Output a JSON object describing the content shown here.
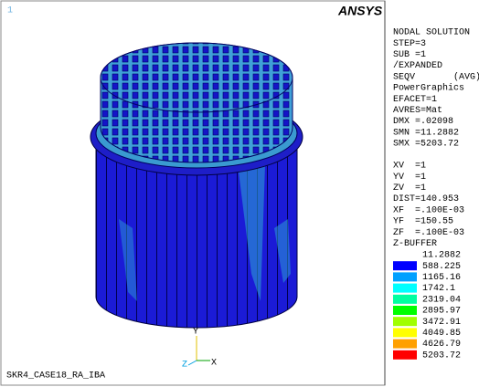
{
  "viewport": {
    "window_number": "1",
    "logo": "ANSYS",
    "jobname": "SKR4_CASE18_RA_IBA",
    "triad": {
      "x": "X",
      "y": "Y",
      "z": "Z"
    }
  },
  "info": {
    "solution": [
      "NODAL SOLUTION",
      "STEP=3",
      "SUB =1",
      "/EXPANDED",
      "SEQV       (AVG)",
      "PowerGraphics",
      "EFACET=1",
      "AVRES=Mat",
      "DMX =.02098",
      "SMN =11.2882",
      "SMX =5203.72"
    ],
    "view": [
      "XV  =1",
      "YV  =1",
      "ZV  =1",
      "DIST=140.953",
      "XF  =.100E-03",
      "YF  =150.55",
      "ZF  =.100E-03",
      "Z-BUFFER"
    ]
  },
  "legend": {
    "values": [
      "11.2882",
      "588.225",
      "1165.16",
      "1742.1",
      "2319.04",
      "2895.97",
      "3472.91",
      "4049.85",
      "4626.79",
      "5203.72"
    ],
    "colors": [
      "#0000ff",
      "#00a0ff",
      "#00ffff",
      "#00ffa0",
      "#00ff00",
      "#a0ff00",
      "#ffff00",
      "#ffa000",
      "#ff0000"
    ]
  }
}
